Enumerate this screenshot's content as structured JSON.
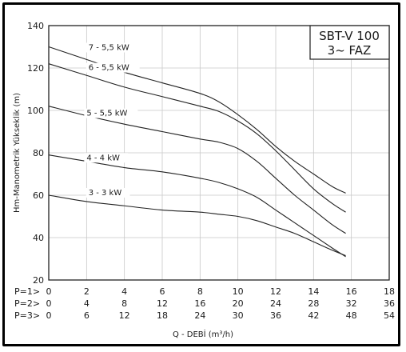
{
  "chart_data": {
    "type": "line",
    "title": "SBT-V 100",
    "subtitle": "3~ FAZ",
    "ylabel": "Hm-Manometrik Yükseklik (m)",
    "xlabel": "Q - DEBİ (m³/h)",
    "ylim": [
      20,
      140
    ],
    "yticks": [
      20,
      40,
      60,
      80,
      100,
      120,
      140
    ],
    "xlim": [
      0,
      18
    ],
    "x_axes": [
      {
        "label": "P=1>",
        "ticks": [
          0,
          2,
          4,
          6,
          8,
          10,
          12,
          14,
          16,
          18
        ]
      },
      {
        "label": "P=2>",
        "ticks": [
          0,
          4,
          8,
          12,
          16,
          20,
          24,
          28,
          32,
          36
        ]
      },
      {
        "label": "P=3>",
        "ticks": [
          0,
          6,
          12,
          18,
          24,
          30,
          36,
          42,
          48,
          54
        ]
      }
    ],
    "grid": true,
    "series": [
      {
        "name": "7 - 5,5 kW",
        "label_at": [
          2.1,
          128.5
        ],
        "x": [
          0,
          2,
          4,
          6,
          8,
          9,
          10,
          11,
          12,
          13,
          14,
          15,
          15.7
        ],
        "y": [
          130,
          124,
          118,
          113,
          108,
          104,
          98,
          91,
          83,
          76,
          70,
          64,
          61
        ]
      },
      {
        "name": "6 - 5,5 kW",
        "label_at": [
          2.1,
          119
        ],
        "x": [
          0,
          2,
          4,
          6,
          8,
          9,
          10,
          11,
          12,
          13,
          14,
          15,
          15.7
        ],
        "y": [
          122,
          116.5,
          111,
          106.5,
          102,
          99.5,
          95,
          89,
          81,
          72,
          63,
          56,
          52
        ]
      },
      {
        "name": "5 - 5,5 kW",
        "label_at": [
          2.0,
          97.5
        ],
        "x": [
          0,
          2,
          4,
          6,
          8,
          9,
          10,
          11,
          12,
          13,
          14,
          15,
          15.7
        ],
        "y": [
          102,
          97.5,
          93.5,
          90,
          86.5,
          85,
          82,
          76,
          68,
          60,
          53,
          46,
          42
        ]
      },
      {
        "name": "4 - 4 kW",
        "label_at": [
          2.0,
          76.5
        ],
        "x": [
          0,
          2,
          4,
          6,
          8,
          9,
          10,
          11,
          12,
          13,
          14,
          15,
          15.7
        ],
        "y": [
          79,
          76,
          73,
          71,
          68,
          66,
          63,
          59,
          53,
          47,
          41,
          35,
          31
        ]
      },
      {
        "name": "3 - 3 kW",
        "label_at": [
          2.1,
          60
        ],
        "x": [
          0,
          2,
          4,
          6,
          8,
          9,
          10,
          11,
          12,
          13,
          14,
          15,
          15.7
        ],
        "y": [
          60,
          57,
          55,
          53,
          52,
          51,
          50,
          48,
          45,
          42,
          38,
          34,
          31.5
        ]
      }
    ]
  }
}
